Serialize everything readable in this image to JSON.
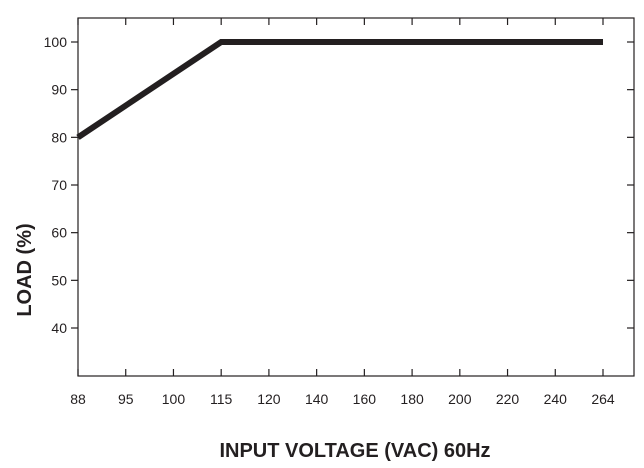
{
  "chart_data": {
    "type": "line",
    "title": "",
    "xlabel": "INPUT VOLTAGE (VAC) 60Hz",
    "ylabel": "LOAD (%)",
    "x_scale": "categorical",
    "x_ticks": [
      "88",
      "95",
      "100",
      "115",
      "120",
      "140",
      "160",
      "180",
      "200",
      "220",
      "240",
      "264"
    ],
    "y_ticks": [
      40,
      50,
      60,
      70,
      80,
      90,
      100
    ],
    "ylim": [
      30,
      105
    ],
    "grid": false,
    "series": [
      {
        "points": [
          {
            "x": "88",
            "y": 80
          },
          {
            "x": "115",
            "y": 100
          },
          {
            "x": "264",
            "y": 100
          }
        ],
        "color": "#231f20"
      }
    ]
  }
}
